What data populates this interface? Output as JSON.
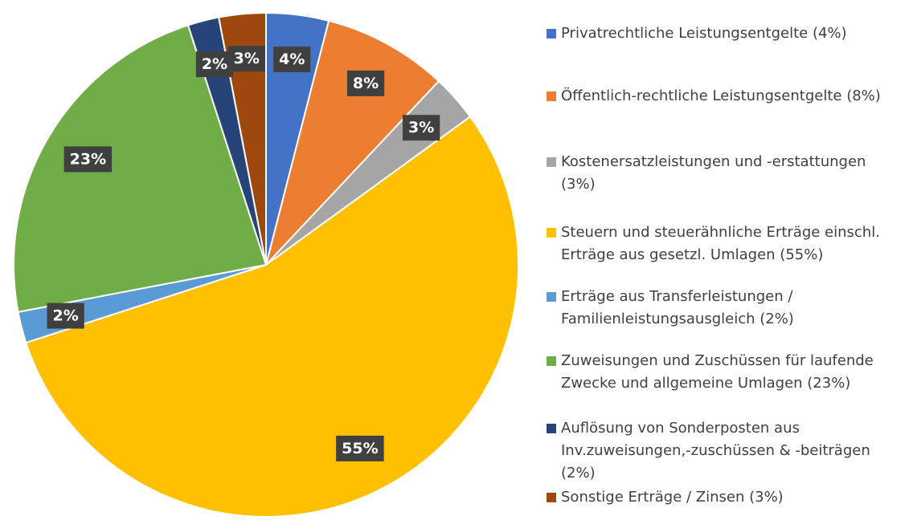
{
  "chart_data": {
    "type": "pie",
    "categories": [
      "Privatrechtliche Leistungsentgelte (4%)",
      "Öffentlich-rechtliche Leistungsentgelte (8%)",
      "Kostenersatzleistungen und -erstattungen (3%)",
      "Steuern und steuerähnliche Erträge einschl. Erträge aus gesetzl. Umlagen (55%)",
      "Erträge aus Transferleistungen / Familienleistungsausgleich (2%)",
      "Zuweisungen und Zuschüssen für laufende Zwecke und allgemeine Umlagen (23%)",
      "Auflösung von Sonderposten aus Inv.zuweisungen,-zuschüssen & -beiträgen (2%)",
      "Sonstige Erträge / Zinsen (3%)"
    ],
    "values": [
      4,
      8,
      3,
      55,
      2,
      23,
      2,
      3
    ],
    "value_labels": [
      "4%",
      "8%",
      "3%",
      "55%",
      "2%",
      "23%",
      "2%",
      "3%"
    ],
    "colors": [
      "#4472c4",
      "#ed7d31",
      "#a5a5a5",
      "#ffc000",
      "#5b9bd5",
      "#70ad47",
      "#264478",
      "#9e480e"
    ],
    "legend": "right"
  }
}
